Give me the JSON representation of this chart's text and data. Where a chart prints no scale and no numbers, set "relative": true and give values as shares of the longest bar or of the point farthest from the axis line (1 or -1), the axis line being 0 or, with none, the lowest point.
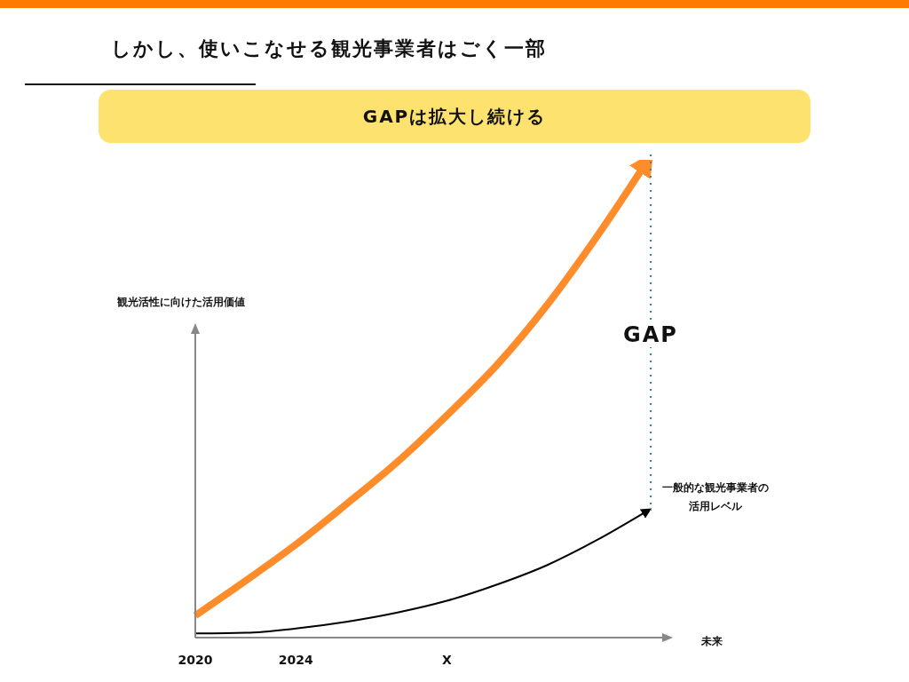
{
  "chart_data": {
    "type": "line",
    "title": "しかし、使いこなせる観光事業者はごく一部",
    "subtitle": "GAPは拡大し続ける",
    "xlabel": "未来",
    "ylabel": "観光活性に向けた活用価値",
    "annotations": [
      "GAP"
    ],
    "relative": true,
    "categories": [
      "2020",
      null,
      "2024",
      null,
      null,
      "X",
      null,
      null,
      null,
      null
    ],
    "series": [
      {
        "color": "#ff8c2a",
        "values": [
          0.046,
          0.119,
          0.195,
          0.279,
          0.366,
          0.465,
          0.571,
          0.697,
          0.842,
          1
        ]
      },
      {
        "name": "一般的な観光事業者の活用レベル",
        "color": "#000000",
        "values": [
          0.009,
          0.01,
          0.019,
          0.033,
          0.052,
          0.077,
          0.111,
          0.152,
          0.205,
          0.266
        ]
      }
    ]
  }
}
